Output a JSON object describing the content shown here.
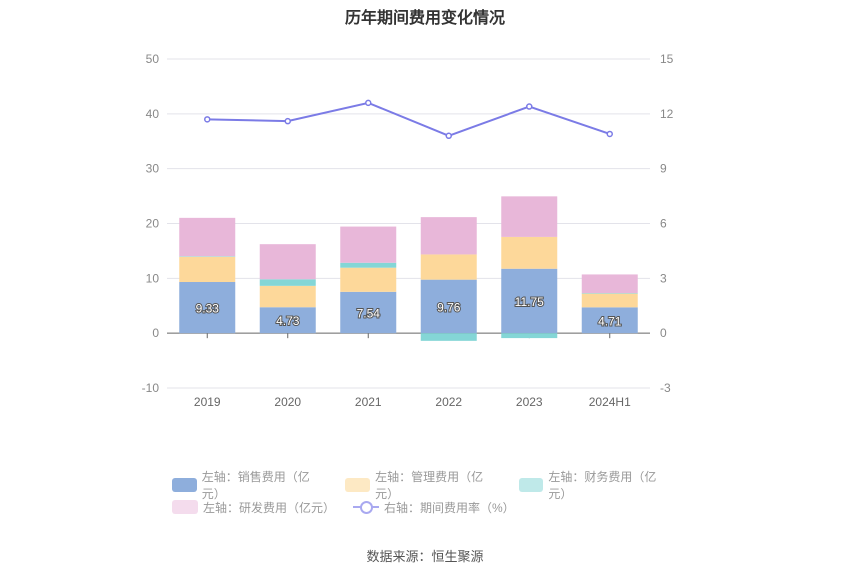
{
  "chart_data": {
    "type": "bar",
    "title": "历年期间费用变化情况",
    "categories": [
      "2019",
      "2020",
      "2021",
      "2022",
      "2023",
      "2024H1"
    ],
    "left_axis": {
      "ylim": [
        -10,
        50
      ],
      "ticks": [
        -10,
        0,
        10,
        20,
        30,
        40,
        50
      ]
    },
    "right_axis": {
      "ylim": [
        -3,
        15
      ],
      "ticks": [
        -3,
        0,
        3,
        6,
        9,
        12,
        15
      ]
    },
    "series": [
      {
        "name": "左轴：销售费用（亿元）",
        "type": "bar",
        "axis": "left",
        "color": "#8eaedc",
        "values": [
          9.33,
          4.73,
          7.54,
          9.76,
          11.75,
          4.71
        ],
        "labels": [
          "9.33",
          "4.73",
          "7.54",
          "9.76",
          "11.75",
          "4.71"
        ]
      },
      {
        "name": "左轴：管理费用（亿元）",
        "type": "bar",
        "axis": "left",
        "color": "#fdd89a",
        "values": [
          4.6,
          3.9,
          4.4,
          4.6,
          5.8,
          2.5
        ]
      },
      {
        "name": "左轴：财务费用（亿元）",
        "type": "bar",
        "axis": "left",
        "color": "#84d6d6",
        "values": [
          0.1,
          1.2,
          0.9,
          -1.4,
          -0.9,
          0.1
        ]
      },
      {
        "name": "左轴：研发费用（亿元）",
        "type": "bar",
        "axis": "left",
        "color": "#e8b7d9",
        "values": [
          7.0,
          6.4,
          6.6,
          6.8,
          7.4,
          3.4
        ]
      },
      {
        "name": "右轴：期间费用率（%）",
        "type": "line",
        "axis": "right",
        "color": "#7b7be6",
        "values": [
          11.7,
          11.6,
          12.6,
          10.8,
          12.4,
          10.9
        ]
      }
    ]
  },
  "source": "数据来源：恒生聚源"
}
